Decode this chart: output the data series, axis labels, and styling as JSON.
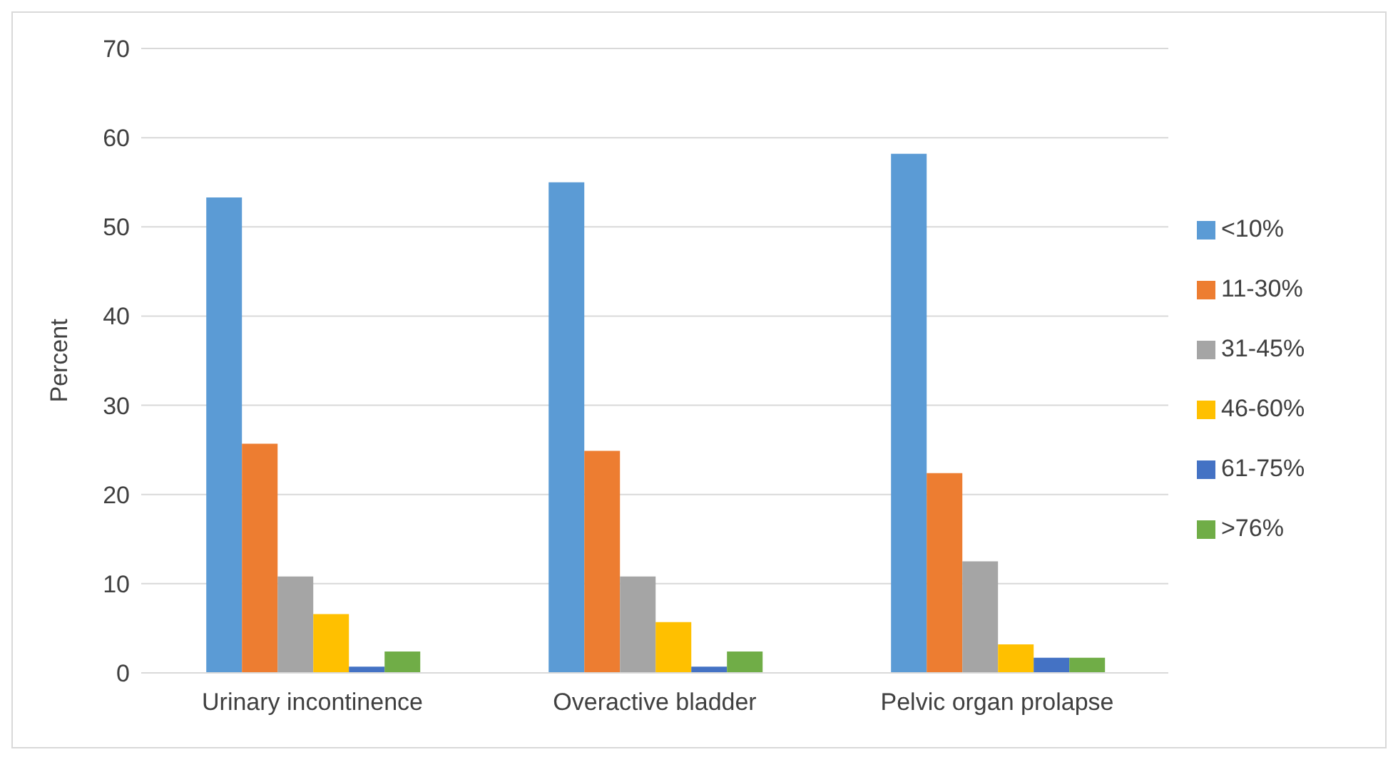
{
  "chart_data": {
    "type": "bar",
    "ylabel": "Percent",
    "categories": [
      "Urinary incontinence",
      "Overactive bladder",
      "Pelvic organ prolapse"
    ],
    "series": [
      {
        "name": "<10%",
        "color": "#5b9bd5",
        "values": [
          53.3,
          55.0,
          58.2
        ]
      },
      {
        "name": "11-30%",
        "color": "#ed7d31",
        "values": [
          25.7,
          24.9,
          22.4
        ]
      },
      {
        "name": "31-45%",
        "color": "#a5a5a5",
        "values": [
          10.8,
          10.8,
          12.5
        ]
      },
      {
        "name": "46-60%",
        "color": "#ffc000",
        "values": [
          6.6,
          5.7,
          3.2
        ]
      },
      {
        "name": "61-75%",
        "color": "#4472c4",
        "values": [
          0.7,
          0.7,
          1.7
        ]
      },
      {
        "name": ">76%",
        "color": "#70ad47",
        "values": [
          2.4,
          2.4,
          1.7
        ]
      }
    ],
    "ylim": [
      0,
      70
    ],
    "yticks": [
      0,
      10,
      20,
      30,
      40,
      50,
      60,
      70
    ],
    "grid": "y",
    "legend": "right"
  }
}
